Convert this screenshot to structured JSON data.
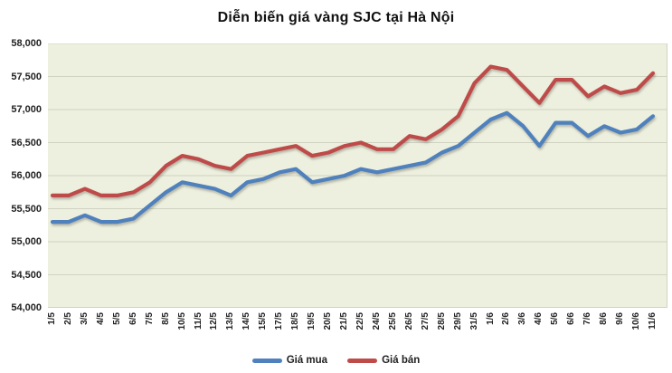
{
  "title": "Diễn biến giá vàng SJC tại Hà Nội",
  "colors": {
    "plot_background": "#eef0df",
    "gridline": "#d0d2c2",
    "axis_line": "#b3b5a5",
    "buy_line": "#4f81bd",
    "sell_line": "#be4b48",
    "text": "#222222"
  },
  "chart_data": {
    "type": "line",
    "title": "Diễn biến giá vàng SJC tại Hà Nội",
    "xlabel": "",
    "ylabel": "",
    "ylim": [
      54000,
      58000
    ],
    "y_tick_step": 500,
    "y_tick_labels": [
      "58,000",
      "57,500",
      "57,000",
      "56,500",
      "56,000",
      "55,500",
      "55,000",
      "54,500",
      "54,000"
    ],
    "grid": true,
    "legend_position": "bottom",
    "categories": [
      "1/5",
      "2/5",
      "3/5",
      "4/5",
      "5/5",
      "6/5",
      "7/5",
      "8/5",
      "10/5",
      "11/5",
      "12/5",
      "13/5",
      "14/5",
      "15/5",
      "17/5",
      "18/5",
      "19/5",
      "20/5",
      "21/5",
      "22/5",
      "24/5",
      "25/5",
      "26/5",
      "27/5",
      "28/5",
      "29/5",
      "31/5",
      "1/6",
      "2/6",
      "3/6",
      "4/6",
      "5/6",
      "6/6",
      "7/6",
      "8/6",
      "9/6",
      "10/6",
      "11/6"
    ],
    "series": [
      {
        "name": "Giá mua",
        "color": "#4f81bd",
        "values": [
          55300,
          55300,
          55400,
          55300,
          55300,
          55350,
          55550,
          55750,
          55900,
          55850,
          55800,
          55700,
          55900,
          55950,
          56050,
          56100,
          55900,
          55950,
          56000,
          56100,
          56050,
          56100,
          56150,
          56200,
          56350,
          56450,
          56650,
          56850,
          56950,
          56750,
          56450,
          56800,
          56800,
          56600,
          56750,
          56650,
          56700,
          56900
        ]
      },
      {
        "name": "Giá bán",
        "color": "#be4b48",
        "values": [
          55700,
          55700,
          55800,
          55700,
          55700,
          55750,
          55900,
          56150,
          56300,
          56250,
          56150,
          56100,
          56300,
          56350,
          56400,
          56450,
          56300,
          56350,
          56450,
          56500,
          56400,
          56400,
          56600,
          56550,
          56700,
          56900,
          57400,
          57650,
          57600,
          57350,
          57100,
          57450,
          57450,
          57200,
          57350,
          57250,
          57300,
          57550
        ]
      }
    ]
  }
}
